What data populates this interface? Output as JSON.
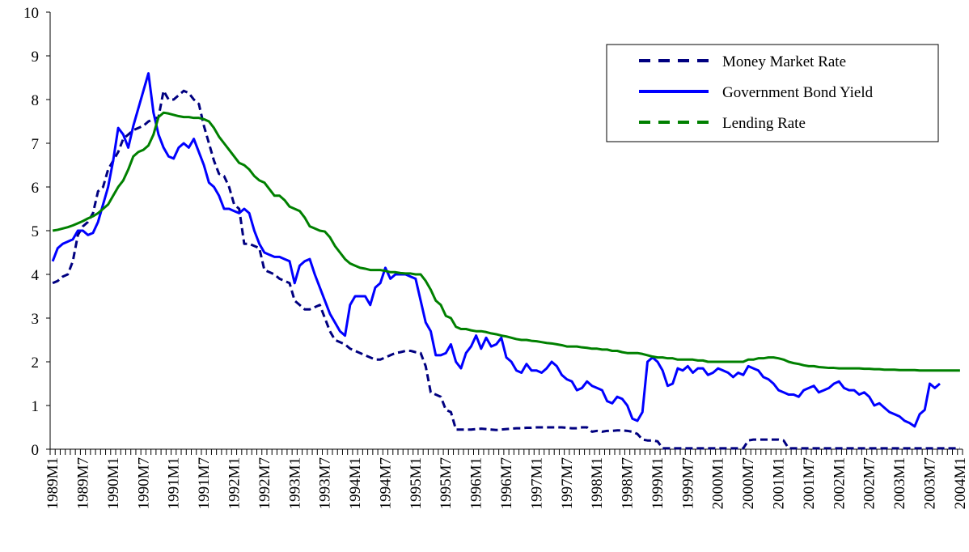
{
  "chart_data": {
    "type": "line",
    "categories": [
      "1989M1",
      null,
      null,
      null,
      null,
      null,
      "1989M7",
      null,
      null,
      null,
      null,
      null,
      "1990M1",
      null,
      null,
      null,
      null,
      null,
      "1990M7",
      null,
      null,
      null,
      null,
      null,
      "1991M1",
      null,
      null,
      null,
      null,
      null,
      "1991M7",
      null,
      null,
      null,
      null,
      null,
      "1992M1",
      null,
      null,
      null,
      null,
      null,
      "1992M7",
      null,
      null,
      null,
      null,
      null,
      "1993M1",
      null,
      null,
      null,
      null,
      null,
      "1993M7",
      null,
      null,
      null,
      null,
      null,
      "1994M1",
      null,
      null,
      null,
      null,
      null,
      "1994M7",
      null,
      null,
      null,
      null,
      null,
      "1995M1",
      null,
      null,
      null,
      null,
      null,
      "1995M7",
      null,
      null,
      null,
      null,
      null,
      "1996M1",
      null,
      null,
      null,
      null,
      null,
      "1996M7",
      null,
      null,
      null,
      null,
      null,
      "1997M1",
      null,
      null,
      null,
      null,
      null,
      "1997M7",
      null,
      null,
      null,
      null,
      null,
      "1998M1",
      null,
      null,
      null,
      null,
      null,
      "1998M7",
      null,
      null,
      null,
      null,
      null,
      "1999M1",
      null,
      null,
      null,
      null,
      null,
      "1999M7",
      null,
      null,
      null,
      null,
      null,
      "2000M1",
      null,
      null,
      null,
      null,
      null,
      "2000M7",
      null,
      null,
      null,
      null,
      null,
      "2001M1",
      null,
      null,
      null,
      null,
      null,
      "2001M7",
      null,
      null,
      null,
      null,
      null,
      "2002M1",
      null,
      null,
      null,
      null,
      null,
      "2002M7",
      null,
      null,
      null,
      null,
      null,
      "2003M1",
      null,
      null,
      null,
      null,
      null,
      "2003M7",
      null,
      null,
      null,
      null,
      null,
      "2004M1"
    ],
    "series": [
      {
        "name": "Money Market Rate",
        "color": "#000080",
        "line_style": "dashed",
        "values": [
          3.8,
          3.85,
          3.95,
          4.0,
          4.3,
          4.9,
          5.1,
          5.2,
          5.4,
          5.9,
          6.0,
          6.4,
          6.6,
          6.8,
          7.1,
          7.2,
          7.3,
          7.35,
          7.4,
          7.5,
          7.55,
          7.6,
          8.2,
          8.0,
          8.0,
          8.1,
          8.2,
          8.15,
          8.0,
          7.9,
          7.4,
          7.0,
          6.6,
          6.3,
          6.25,
          6.0,
          5.6,
          5.5,
          4.7,
          4.7,
          4.65,
          4.6,
          4.1,
          4.05,
          4.0,
          3.9,
          3.85,
          3.8,
          3.4,
          3.3,
          3.2,
          3.2,
          3.25,
          3.3,
          3.0,
          2.7,
          2.5,
          2.45,
          2.4,
          2.3,
          2.25,
          2.2,
          2.15,
          2.1,
          2.05,
          2.05,
          2.1,
          2.15,
          2.2,
          2.22,
          2.25,
          2.25,
          2.22,
          2.2,
          1.9,
          1.3,
          1.25,
          1.2,
          0.9,
          0.85,
          0.45,
          0.45,
          0.45,
          0.45,
          0.46,
          0.47,
          0.46,
          0.45,
          0.44,
          0.45,
          0.46,
          0.47,
          0.48,
          0.48,
          0.49,
          0.49,
          0.5,
          0.5,
          0.5,
          0.5,
          0.5,
          0.5,
          0.49,
          0.48,
          0.48,
          0.5,
          0.5,
          0.4,
          0.42,
          0.4,
          0.42,
          0.42,
          0.43,
          0.43,
          0.42,
          0.4,
          0.35,
          0.22,
          0.2,
          0.2,
          0.18,
          0.02,
          0.02,
          0.02,
          0.02,
          0.02,
          0.02,
          0.02,
          0.02,
          0.02,
          0.02,
          0.02,
          0.02,
          0.02,
          0.02,
          0.02,
          0.02,
          0.02,
          0.2,
          0.22,
          0.22,
          0.22,
          0.22,
          0.22,
          0.22,
          0.2,
          0.02,
          0.02,
          0.02,
          0.02,
          0.02,
          0.02,
          0.02,
          0.02,
          0.02,
          0.02,
          0.02,
          0.02,
          0.02,
          0.02,
          0.02,
          0.02,
          0.02,
          0.02,
          0.02,
          0.02,
          0.02,
          0.02,
          0.02,
          0.02,
          0.02,
          0.02,
          0.02,
          0.02,
          0.02,
          0.02,
          0.02,
          0.02,
          0.02,
          0.02,
          0.02
        ]
      },
      {
        "name": "Government Bond Yield",
        "color": "#0000ff",
        "line_style": "solid",
        "values": [
          4.3,
          4.6,
          4.7,
          4.75,
          4.8,
          5.0,
          5.0,
          4.9,
          4.95,
          5.2,
          5.6,
          6.0,
          6.6,
          7.35,
          7.2,
          6.9,
          7.4,
          7.8,
          8.2,
          8.6,
          7.7,
          7.2,
          6.9,
          6.7,
          6.65,
          6.9,
          7.0,
          6.9,
          7.1,
          6.8,
          6.5,
          6.1,
          6.0,
          5.8,
          5.5,
          5.5,
          5.45,
          5.4,
          5.5,
          5.4,
          5.0,
          4.7,
          4.5,
          4.45,
          4.4,
          4.4,
          4.35,
          4.3,
          3.8,
          4.2,
          4.3,
          4.35,
          4.0,
          3.7,
          3.4,
          3.1,
          2.9,
          2.7,
          2.6,
          3.3,
          3.5,
          3.5,
          3.5,
          3.3,
          3.7,
          3.8,
          4.15,
          3.9,
          4.0,
          4.0,
          4.0,
          3.95,
          3.9,
          3.4,
          2.9,
          2.7,
          2.15,
          2.15,
          2.2,
          2.4,
          2.0,
          1.85,
          2.2,
          2.35,
          2.6,
          2.3,
          2.55,
          2.35,
          2.4,
          2.55,
          2.1,
          2.0,
          1.8,
          1.75,
          1.95,
          1.8,
          1.8,
          1.75,
          1.85,
          2.0,
          1.9,
          1.7,
          1.6,
          1.55,
          1.35,
          1.4,
          1.55,
          1.45,
          1.4,
          1.35,
          1.1,
          1.05,
          1.2,
          1.15,
          1.0,
          0.7,
          0.65,
          0.85,
          2.0,
          2.1,
          2.0,
          1.8,
          1.45,
          1.5,
          1.85,
          1.8,
          1.9,
          1.75,
          1.85,
          1.85,
          1.7,
          1.75,
          1.85,
          1.8,
          1.75,
          1.65,
          1.75,
          1.7,
          1.9,
          1.85,
          1.8,
          1.65,
          1.6,
          1.5,
          1.35,
          1.3,
          1.25,
          1.25,
          1.2,
          1.35,
          1.4,
          1.45,
          1.3,
          1.35,
          1.4,
          1.5,
          1.55,
          1.4,
          1.35,
          1.35,
          1.25,
          1.3,
          1.2,
          1.0,
          1.05,
          0.95,
          0.85,
          0.8,
          0.75,
          0.65,
          0.6,
          0.52,
          0.8,
          0.9,
          1.5,
          1.4,
          1.5,
          null,
          null,
          null,
          null
        ]
      },
      {
        "name": "Lending Rate",
        "color": "#008000",
        "line_style": "dashed",
        "values": [
          5.0,
          5.02,
          5.05,
          5.08,
          5.12,
          5.17,
          5.22,
          5.28,
          5.33,
          5.4,
          5.5,
          5.6,
          5.8,
          6.0,
          6.15,
          6.4,
          6.7,
          6.8,
          6.85,
          6.95,
          7.2,
          7.6,
          7.7,
          7.68,
          7.65,
          7.62,
          7.6,
          7.6,
          7.58,
          7.58,
          7.55,
          7.5,
          7.35,
          7.15,
          7.0,
          6.85,
          6.7,
          6.55,
          6.5,
          6.4,
          6.25,
          6.15,
          6.1,
          5.95,
          5.8,
          5.8,
          5.7,
          5.55,
          5.5,
          5.45,
          5.3,
          5.1,
          5.05,
          5.0,
          4.98,
          4.85,
          4.65,
          4.5,
          4.35,
          4.25,
          4.2,
          4.15,
          4.13,
          4.1,
          4.1,
          4.1,
          4.08,
          4.05,
          4.05,
          4.03,
          4.02,
          4.02,
          4.0,
          4.0,
          3.85,
          3.65,
          3.4,
          3.3,
          3.05,
          3.0,
          2.8,
          2.75,
          2.75,
          2.72,
          2.7,
          2.7,
          2.68,
          2.65,
          2.63,
          2.6,
          2.58,
          2.55,
          2.52,
          2.5,
          2.5,
          2.48,
          2.47,
          2.45,
          2.43,
          2.42,
          2.4,
          2.38,
          2.35,
          2.35,
          2.35,
          2.33,
          2.32,
          2.3,
          2.3,
          2.28,
          2.28,
          2.25,
          2.25,
          2.22,
          2.2,
          2.2,
          2.2,
          2.18,
          2.15,
          2.12,
          2.1,
          2.1,
          2.08,
          2.08,
          2.05,
          2.05,
          2.05,
          2.05,
          2.03,
          2.03,
          2.0,
          2.0,
          2.0,
          2.0,
          2.0,
          2.0,
          2.0,
          2.0,
          2.05,
          2.05,
          2.08,
          2.08,
          2.1,
          2.1,
          2.08,
          2.05,
          2.0,
          1.97,
          1.95,
          1.92,
          1.9,
          1.9,
          1.88,
          1.87,
          1.86,
          1.86,
          1.85,
          1.85,
          1.85,
          1.85,
          1.85,
          1.84,
          1.84,
          1.83,
          1.83,
          1.82,
          1.82,
          1.82,
          1.81,
          1.81,
          1.81,
          1.81,
          1.8,
          1.8,
          1.8,
          1.8,
          1.8,
          1.8,
          1.8,
          1.8,
          1.8
        ]
      }
    ],
    "ylim": [
      0,
      10
    ],
    "yticks": [
      0,
      1,
      2,
      3,
      4,
      5,
      6,
      7,
      8,
      9,
      10
    ],
    "legend": "top-right"
  }
}
